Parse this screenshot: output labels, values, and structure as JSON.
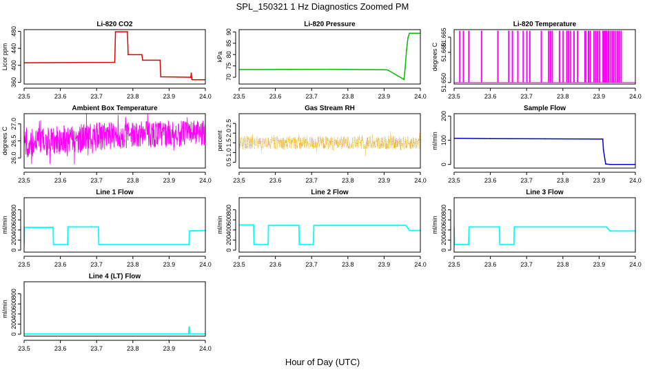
{
  "figure": {
    "title": "SPL_150321  1 Hz Diagnostics Zoomed PM",
    "xlabel": "Hour of Day (UTC)"
  },
  "chart_data": [
    {
      "id": "co2",
      "type": "line",
      "title": "Li-820 CO2",
      "ylabel": "Licor ppm",
      "xlim": [
        23.5,
        24.0
      ],
      "ylim": [
        356,
        484
      ],
      "xticks": [
        23.5,
        23.6,
        23.7,
        23.8,
        23.9,
        24.0
      ],
      "yticks": [
        360,
        400,
        440,
        480
      ],
      "color": "#dd0000",
      "series": [
        {
          "name": "Li-820 CO2",
          "x": [
            23.5,
            23.75,
            23.752,
            23.785,
            23.787,
            23.825,
            23.827,
            23.875,
            23.877,
            23.96,
            23.961,
            23.963,
            23.965,
            24.0
          ],
          "y": [
            406,
            407,
            479,
            479,
            425,
            425,
            412,
            412,
            373,
            372,
            382,
            367,
            366,
            366
          ]
        }
      ]
    },
    {
      "id": "pressure",
      "type": "line",
      "title": "Li-820 Pressure",
      "ylabel": "kPa",
      "xlim": [
        23.5,
        24.0
      ],
      "ylim": [
        67,
        91
      ],
      "xticks": [
        23.5,
        23.6,
        23.7,
        23.8,
        23.9,
        24.0
      ],
      "yticks": [
        70,
        75,
        80,
        85,
        90
      ],
      "color": "#00bb00",
      "series": [
        {
          "name": "Li-820 Pressure",
          "x": [
            23.5,
            23.75,
            23.9,
            23.91,
            23.955,
            23.958,
            23.962,
            23.966,
            23.97,
            24.0
          ],
          "y": [
            73.4,
            73.5,
            73.3,
            73.2,
            69.0,
            74.0,
            82.0,
            87.5,
            89.4,
            89.4
          ]
        }
      ]
    },
    {
      "id": "temperature",
      "type": "line",
      "title": "Li-820 Temperature",
      "ylabel": "degrees C",
      "xlim": [
        23.5,
        24.0
      ],
      "ylim": [
        51.6495,
        51.6675
      ],
      "xticks": [
        23.5,
        23.6,
        23.7,
        23.8,
        23.9,
        24.0
      ],
      "yticks": [
        51.65,
        51.66,
        51.665
      ],
      "ytick_labels": [
        "51.650",
        "51.660",
        "51.665"
      ],
      "color": "#ff00ff",
      "baseline": 51.65,
      "spike": 51.667,
      "spike_x": [
        23.515,
        23.525,
        23.54,
        23.575,
        23.62,
        23.65,
        23.66,
        23.675,
        23.69,
        23.7,
        23.708,
        23.74,
        23.76,
        23.765,
        23.77,
        23.79,
        23.8,
        23.81,
        23.815,
        23.82,
        23.83,
        23.84,
        23.86,
        23.862,
        23.87,
        23.875,
        23.885,
        23.89,
        23.895,
        23.9,
        23.91,
        23.912,
        23.915,
        23.918,
        23.92,
        23.925,
        23.93,
        23.935,
        23.94,
        23.945,
        23.95,
        23.955,
        23.96
      ]
    },
    {
      "id": "ambient",
      "type": "line",
      "title": "Ambient Box Temperature",
      "ylabel": "degrees C",
      "xlim": [
        23.5,
        24.0
      ],
      "ylim": [
        25.7,
        27.3
      ],
      "xticks": [
        23.5,
        23.6,
        23.7,
        23.8,
        23.9,
        24.0
      ],
      "yticks": [
        26.0,
        26.5,
        27.0
      ],
      "ytick_labels": [
        "26.0",
        "26.5",
        "27.0"
      ],
      "color": "#ff00ff",
      "band_x": [
        23.5,
        23.55,
        23.6,
        23.65,
        23.7,
        23.75,
        23.8,
        23.85,
        23.9,
        23.95,
        24.0
      ],
      "band_low": [
        26.0,
        26.05,
        26.1,
        26.15,
        26.2,
        26.25,
        26.3,
        26.3,
        26.3,
        26.35,
        26.35
      ],
      "band_high": [
        26.9,
        26.9,
        26.95,
        27.0,
        27.05,
        27.05,
        27.1,
        27.1,
        27.1,
        27.1,
        27.1
      ],
      "series": [
        {
          "name": "Ambient Box Temperature",
          "x": [
            23.5,
            23.6,
            23.7,
            23.8,
            23.9,
            24.0
          ],
          "y": [
            26.4,
            26.5,
            26.6,
            26.7,
            26.7,
            26.75
          ]
        }
      ]
    },
    {
      "id": "rh",
      "type": "line",
      "title": "Gas Stream RH",
      "ylabel": "percent",
      "xlim": [
        23.5,
        24.0
      ],
      "ylim": [
        0.2,
        3.0
      ],
      "xticks": [
        23.5,
        23.6,
        23.7,
        23.8,
        23.9,
        24.0
      ],
      "yticks": [
        0.5,
        1.0,
        1.5,
        2.0,
        2.5
      ],
      "ytick_labels": [
        "0.5",
        "1.0",
        "1.5",
        "2.0",
        "2.5"
      ],
      "color": "#e6a000",
      "band_x": [
        23.5,
        24.0
      ],
      "band_low": [
        1.15,
        1.15
      ],
      "band_high": [
        1.85,
        1.85
      ],
      "series": [
        {
          "name": "Gas Stream RH",
          "x": [
            23.5,
            23.75,
            24.0
          ],
          "y": [
            1.5,
            1.5,
            1.5
          ]
        }
      ]
    },
    {
      "id": "sample-flow",
      "type": "line",
      "title": "Sample Flow",
      "ylabel": "ml/min",
      "xlim": [
        23.5,
        24.0
      ],
      "ylim": [
        -15,
        210
      ],
      "xticks": [
        23.5,
        23.6,
        23.7,
        23.8,
        23.9,
        24.0
      ],
      "yticks": [
        0,
        100,
        200
      ],
      "color": "#0000cc",
      "series": [
        {
          "name": "Sample Flow",
          "x": [
            23.5,
            23.6,
            23.75,
            23.91,
            23.912,
            23.918,
            23.93,
            24.0
          ],
          "y": [
            108,
            107,
            106,
            105,
            60,
            2,
            0,
            0
          ]
        }
      ]
    },
    {
      "id": "line1",
      "type": "line",
      "title": "Line 1 Flow",
      "ylabel": "ml/min",
      "xlim": [
        23.5,
        24.0
      ],
      "ylim": [
        -40,
        1040
      ],
      "xticks": [
        23.5,
        23.6,
        23.7,
        23.8,
        23.9,
        24.0
      ],
      "yticks": [
        0,
        200,
        400,
        600,
        800
      ],
      "color": "#00ffff",
      "series": [
        {
          "name": "Line 1 Flow",
          "x": [
            23.5,
            23.501,
            23.58,
            23.581,
            23.62,
            23.621,
            23.705,
            23.706,
            23.955,
            23.956,
            24.0
          ],
          "y": [
            110,
            450,
            450,
            110,
            110,
            460,
            460,
            110,
            110,
            380,
            390
          ]
        }
      ]
    },
    {
      "id": "line2",
      "type": "line",
      "title": "Line 2 Flow",
      "ylabel": "ml/min",
      "xlim": [
        23.5,
        24.0
      ],
      "ylim": [
        -40,
        1040
      ],
      "xticks": [
        23.5,
        23.6,
        23.7,
        23.8,
        23.9,
        24.0
      ],
      "yticks": [
        0,
        200,
        400,
        600,
        800
      ],
      "color": "#00ffff",
      "series": [
        {
          "name": "Line 2 Flow",
          "x": [
            23.5,
            23.54,
            23.541,
            23.58,
            23.581,
            23.665,
            23.666,
            23.705,
            23.706,
            23.96,
            23.97,
            24.0
          ],
          "y": [
            500,
            500,
            110,
            110,
            490,
            490,
            110,
            110,
            490,
            490,
            390,
            390
          ]
        }
      ]
    },
    {
      "id": "line3",
      "type": "line",
      "title": "Line 3 Flow",
      "ylabel": "ml/min",
      "xlim": [
        23.5,
        24.0
      ],
      "ylim": [
        -40,
        1040
      ],
      "xticks": [
        23.5,
        23.6,
        23.7,
        23.8,
        23.9,
        24.0
      ],
      "yticks": [
        0,
        200,
        400,
        600,
        800
      ],
      "color": "#00ffff",
      "series": [
        {
          "name": "Line 3 Flow",
          "x": [
            23.5,
            23.501,
            23.54,
            23.541,
            23.625,
            23.626,
            23.665,
            23.666,
            23.92,
            23.93,
            24.0
          ],
          "y": [
            450,
            110,
            110,
            460,
            460,
            110,
            110,
            460,
            460,
            380,
            380
          ]
        }
      ]
    },
    {
      "id": "line4",
      "type": "line",
      "title": "Line 4 (LT) Flow",
      "ylabel": "ml/min",
      "xlim": [
        23.5,
        24.0
      ],
      "ylim": [
        -40,
        1040
      ],
      "xticks": [
        23.5,
        23.6,
        23.7,
        23.8,
        23.9,
        24.0
      ],
      "yticks": [
        0,
        200,
        400,
        600,
        800
      ],
      "color": "#00ffff",
      "series": [
        {
          "name": "Line 4 (LT) Flow",
          "x": [
            23.5,
            23.954,
            23.955,
            23.956,
            23.957,
            23.96,
            24.0
          ],
          "y": [
            5,
            5,
            140,
            140,
            25,
            5,
            5
          ]
        }
      ]
    }
  ]
}
